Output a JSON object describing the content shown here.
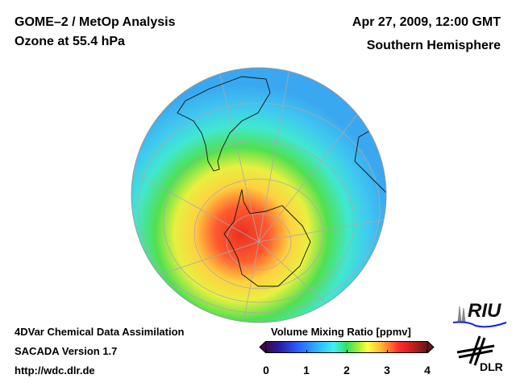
{
  "header": {
    "title_line1": "GOME–2 / MetOp Analysis",
    "title_line2": "Ozone at 55.4 hPa",
    "datetime": "Apr 27, 2009, 12:00 GMT",
    "region": "Southern Hemisphere"
  },
  "footer": {
    "line1": "4DVar Chemical Data Assimilation",
    "line2": "SACADA Version 1.7",
    "url": "http://wdc.dlr.de"
  },
  "colorbar": {
    "title": "Volume Mixing Ratio [ppmv]",
    "ticks": [
      "0",
      "1",
      "2",
      "3",
      "4"
    ],
    "range": [
      0,
      4
    ]
  },
  "logos": {
    "riu": "RIU",
    "dlr": "DLR"
  }
}
